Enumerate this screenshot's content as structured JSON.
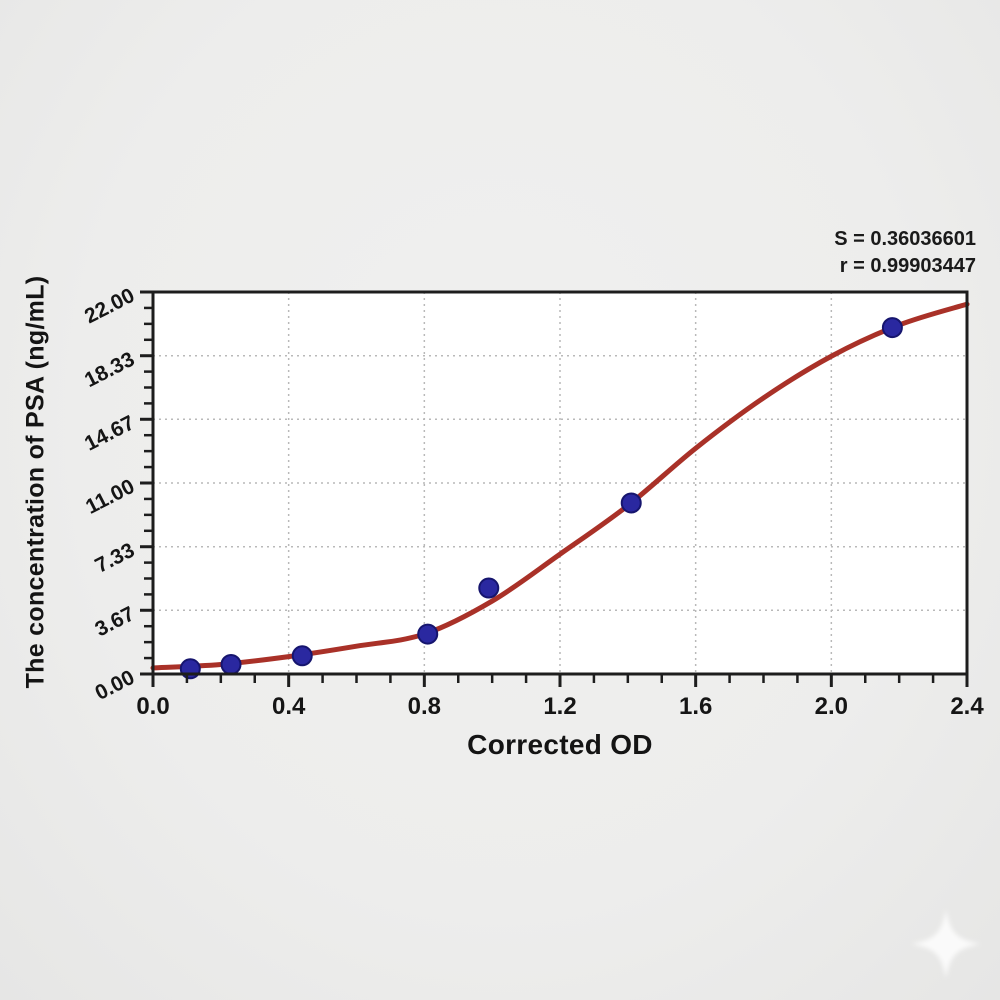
{
  "annotation": {
    "s_label": "S = 0.36036601",
    "r_label": "r = 0.99903447"
  },
  "chart_data": {
    "type": "scatter",
    "title": "",
    "xlabel": "Corrected OD",
    "ylabel": "The concentration of PSA (ng/mL)",
    "xlim": [
      0,
      2.4
    ],
    "ylim": [
      0,
      22
    ],
    "grid": "dotted gridlines at major ticks, plot area boxed",
    "legend_position": "none",
    "x_ticks": {
      "values": [
        0,
        0.4,
        0.8,
        1.2,
        1.6,
        2.0,
        2.4
      ],
      "labels": [
        "0.0",
        "0.4",
        "0.8",
        "1.2",
        "1.6",
        "2.0",
        "2.4"
      ],
      "minor_per_interval": 3
    },
    "y_ticks": {
      "values": [
        0,
        3.67,
        7.33,
        11.0,
        14.67,
        18.33,
        22.0
      ],
      "labels": [
        "0.00",
        "3.67",
        "7.33",
        "11.00",
        "14.67",
        "18.33",
        "22.00"
      ],
      "minor_per_interval": 3,
      "label_rotation_deg": -27
    },
    "series": [
      {
        "name": "standard points",
        "type": "scatter",
        "color": "#2a28a0",
        "edge_color": "#16156e",
        "points": [
          [
            0.11,
            0.3
          ],
          [
            0.23,
            0.55
          ],
          [
            0.44,
            1.05
          ],
          [
            0.81,
            2.3
          ],
          [
            0.99,
            4.95
          ],
          [
            1.41,
            9.85
          ],
          [
            2.18,
            19.95
          ]
        ]
      },
      {
        "name": "4PL fit curve",
        "type": "line",
        "color": "#a93128",
        "points": [
          [
            0.0,
            0.35
          ],
          [
            0.2,
            0.55
          ],
          [
            0.4,
            1.0
          ],
          [
            0.6,
            1.6
          ],
          [
            0.8,
            2.3
          ],
          [
            1.0,
            4.2
          ],
          [
            1.2,
            6.9
          ],
          [
            1.4,
            9.7
          ],
          [
            1.6,
            13.0
          ],
          [
            1.8,
            15.9
          ],
          [
            2.0,
            18.3
          ],
          [
            2.2,
            20.1
          ],
          [
            2.4,
            21.3
          ]
        ]
      }
    ],
    "stats": {
      "S": "0.36036601",
      "r": "0.99903447"
    },
    "colors": {
      "frame": "#1d1d1d",
      "grid": "#b9b9b9",
      "plot_bg": "#ffffff",
      "tick_text": "#151515"
    }
  },
  "watermark": {
    "icon": "sparkle-star",
    "color": "#ffffff"
  }
}
